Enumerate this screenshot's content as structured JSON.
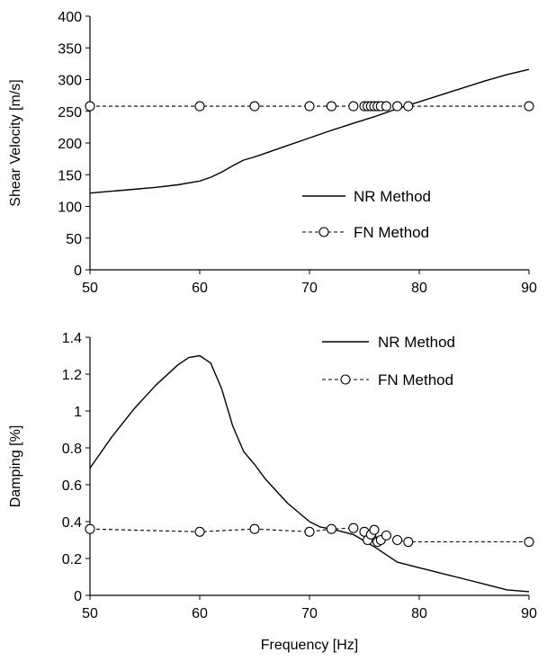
{
  "chart_data": [
    {
      "type": "line",
      "title": "",
      "xlabel": "",
      "ylabel": "Shear Velocity [m/s]",
      "xlim": [
        50,
        90
      ],
      "ylim": [
        0,
        400
      ],
      "xticks": [
        50,
        60,
        70,
        80,
        90
      ],
      "yticks": [
        0,
        50,
        100,
        150,
        200,
        250,
        300,
        350,
        400
      ],
      "grid": false,
      "legend_position": "center-right",
      "series": [
        {
          "name": "NR Method",
          "style": "solid",
          "color": "#000000",
          "x": [
            50,
            52,
            54,
            56,
            58,
            60,
            61,
            62,
            63,
            64,
            65,
            66,
            68,
            70,
            72,
            74,
            76,
            78,
            80,
            82,
            84,
            86,
            88,
            90
          ],
          "y": [
            121,
            124,
            127,
            130,
            134,
            140,
            146,
            154,
            164,
            173,
            178,
            184,
            196,
            208,
            220,
            231,
            242,
            254,
            265,
            276,
            287,
            298,
            308,
            316
          ]
        },
        {
          "name": "FN Method",
          "style": "dashed",
          "marker": "circle",
          "color": "#000000",
          "x": [
            50,
            60,
            65,
            70,
            72,
            74,
            75,
            75.3,
            75.6,
            75.9,
            76.2,
            76.5,
            77,
            78,
            79,
            90
          ],
          "y": [
            258,
            258,
            258,
            258,
            258,
            258,
            258,
            258,
            258,
            258,
            258,
            258,
            258,
            258,
            258,
            258
          ]
        }
      ]
    },
    {
      "type": "line",
      "title": "",
      "xlabel": "Frequency [Hz]",
      "ylabel": "Damping [%]",
      "xlim": [
        50,
        90
      ],
      "ylim": [
        0,
        1.4
      ],
      "xticks": [
        50,
        60,
        70,
        80,
        90
      ],
      "yticks": [
        0,
        0.2,
        0.4,
        0.6,
        0.8,
        1,
        1.2,
        1.4
      ],
      "ytick_labels": [
        "0",
        "0.2",
        "0.4",
        "0.6",
        "0.8",
        "1",
        "1.2",
        "1.4"
      ],
      "grid": false,
      "legend_position": "top-right",
      "series": [
        {
          "name": "NR Method",
          "style": "solid",
          "color": "#000000",
          "x": [
            50,
            52,
            54,
            56,
            58,
            59,
            60,
            61,
            62,
            63,
            64,
            65,
            66,
            68,
            70,
            71,
            72,
            74,
            76,
            78,
            80,
            82,
            84,
            86,
            88,
            90
          ],
          "y": [
            0.69,
            0.86,
            1.01,
            1.14,
            1.25,
            1.29,
            1.3,
            1.26,
            1.12,
            0.92,
            0.78,
            0.71,
            0.63,
            0.5,
            0.4,
            0.37,
            0.36,
            0.33,
            0.26,
            0.18,
            0.15,
            0.12,
            0.09,
            0.06,
            0.03,
            0.02
          ]
        },
        {
          "name": "FN Method",
          "style": "dashed",
          "marker": "circle",
          "color": "#000000",
          "x": [
            50,
            60,
            65,
            70,
            72,
            74,
            75,
            75.3,
            75.6,
            75.9,
            76.2,
            76.5,
            77,
            78,
            79,
            90
          ],
          "y": [
            0.36,
            0.345,
            0.36,
            0.345,
            0.36,
            0.365,
            0.345,
            0.3,
            0.33,
            0.355,
            0.29,
            0.3,
            0.325,
            0.3,
            0.29,
            0.29
          ]
        }
      ]
    }
  ]
}
